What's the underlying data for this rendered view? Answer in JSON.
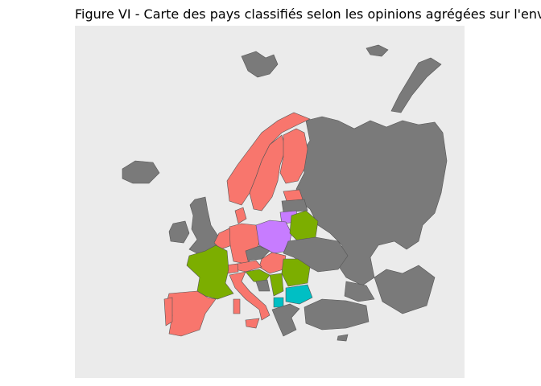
{
  "header": {
    "title": "Figure VI - Carte des pays classifiés selon les opinions agrégées sur l'env"
  }
}
